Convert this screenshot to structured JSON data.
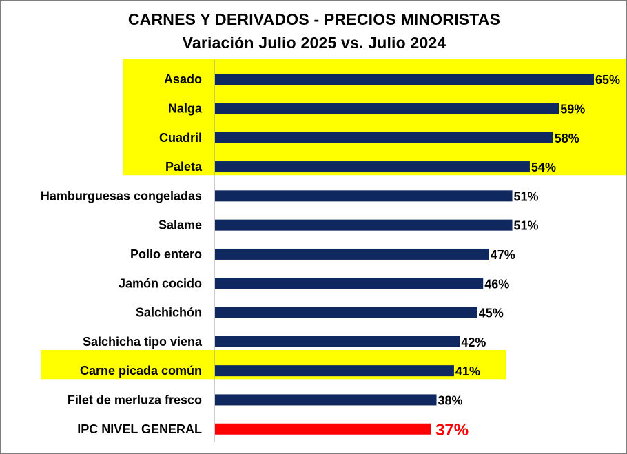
{
  "chart_data": {
    "type": "bar",
    "orientation": "horizontal",
    "title": "CARNES Y DERIVADOS - PRECIOS MINORISTAS",
    "subtitle": "Variación Julio 2025 vs. Julio 2024",
    "categories": [
      "Asado",
      "Nalga",
      "Cuadril",
      "Paleta",
      "Hamburguesas congeladas",
      "Salame",
      "Pollo entero",
      "Jamón cocido",
      "Salchichón",
      "Salchicha tipo viena",
      "Carne picada común",
      "Filet de merluza fresco",
      "IPC NIVEL GENERAL"
    ],
    "values": [
      65,
      59,
      58,
      54,
      51,
      51,
      47,
      46,
      45,
      42,
      41,
      38,
      37
    ],
    "value_labels": [
      "65%",
      "59%",
      "58%",
      "54%",
      "51%",
      "51%",
      "47%",
      "46%",
      "45%",
      "42%",
      "41%",
      "38%",
      "37%"
    ],
    "xlim": [
      0,
      65
    ],
    "grid": false,
    "legend": "none",
    "colors": {
      "bar": "#0f2860",
      "reference_bar": "#ff0000",
      "highlight": "#ffff00",
      "axis": "#999999"
    },
    "highlight_groups": [
      [
        0,
        1,
        2,
        3
      ],
      [
        10
      ]
    ],
    "reference_index": 12
  }
}
